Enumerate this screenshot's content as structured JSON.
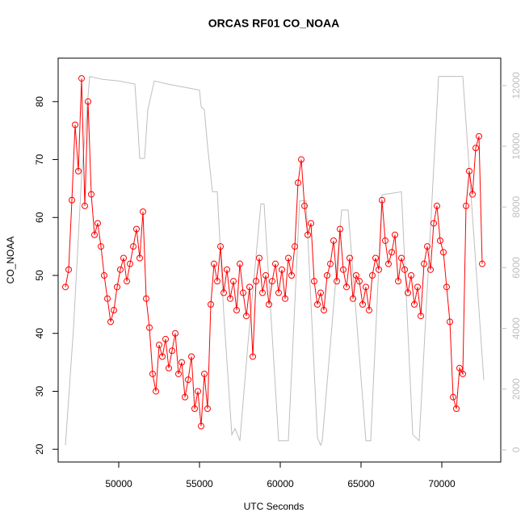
{
  "chart_data": {
    "type": "scatter",
    "title": "ORCAS RF01 CO_NOAA",
    "x_label": "UTC Seconds",
    "y_label": "CO_NOAA",
    "xlim": [
      46250,
      73650
    ],
    "xticks": [
      50000,
      55000,
      60000,
      65000,
      70000
    ],
    "ylim": [
      17.8,
      87.5
    ],
    "yticks": [
      20,
      30,
      40,
      50,
      60,
      70,
      80
    ],
    "y2lim": [
      -400,
      12900
    ],
    "y2ticks": [
      0,
      2000,
      4000,
      6000,
      8000,
      10000,
      12000
    ],
    "series": [
      {
        "color": "#ff0000",
        "marker": "circle",
        "line": true,
        "x": [
          46700,
          46900,
          47100,
          47300,
          47500,
          47700,
          47900,
          48100,
          48300,
          48500,
          48700,
          48900,
          49100,
          49300,
          49500,
          49700,
          49900,
          50100,
          50300,
          50500,
          50700,
          50900,
          51100,
          51300,
          51500,
          51700,
          51900,
          52100,
          52300,
          52500,
          52700,
          52900,
          53100,
          53300,
          53500,
          53700,
          53900,
          54100,
          54300,
          54500,
          54700,
          54900,
          55100,
          55300,
          55500,
          55700,
          55900,
          56100,
          56300,
          56500,
          56700,
          56900,
          57100,
          57300,
          57500,
          57700,
          57900,
          58100,
          58300,
          58500,
          58700,
          58900,
          59100,
          59300,
          59500,
          59700,
          59900,
          60100,
          60300,
          60500,
          60700,
          60900,
          61100,
          61300,
          61500,
          61700,
          61900,
          62100,
          62300,
          62500,
          62700,
          62900,
          63100,
          63300,
          63500,
          63700,
          63900,
          64100,
          64300,
          64500,
          64700,
          64900,
          65100,
          65300,
          65500,
          65700,
          65900,
          66100,
          66300,
          66500,
          66700,
          66900,
          67100,
          67300,
          67500,
          67700,
          67900,
          68100,
          68300,
          68500,
          68700,
          68900,
          69100,
          69300,
          69500,
          69700,
          69900,
          70100,
          70300,
          70500,
          70700,
          70900,
          71100,
          71300,
          71500,
          71700,
          71900,
          72100,
          72300,
          72500
        ],
        "values": [
          48,
          51,
          63,
          76,
          68,
          84,
          62,
          80,
          64,
          57,
          59,
          55,
          50,
          46,
          42,
          44,
          48,
          51,
          53,
          49,
          52,
          55,
          58,
          53,
          61,
          46,
          41,
          33,
          30,
          38,
          36,
          39,
          34,
          37,
          40,
          33,
          35,
          29,
          32,
          36,
          27,
          30,
          24,
          33,
          27,
          45,
          52,
          49,
          55,
          47,
          51,
          46,
          49,
          44,
          52,
          47,
          43,
          48,
          36,
          49,
          53,
          47,
          50,
          45,
          49,
          52,
          47,
          51,
          46,
          53,
          50,
          55,
          66,
          70,
          62,
          57,
          59,
          49,
          45,
          47,
          44,
          50,
          52,
          56,
          49,
          58,
          51,
          48,
          53,
          46,
          50,
          49,
          45,
          48,
          44,
          50,
          53,
          51,
          63,
          56,
          52,
          54,
          57,
          49,
          53,
          51,
          47,
          50,
          45,
          48,
          43,
          52,
          55,
          51,
          59,
          62,
          56,
          54,
          48,
          42,
          29,
          27,
          34,
          33,
          62,
          68,
          64,
          72,
          74,
          52
        ]
      },
      {
        "color": "#bebebe",
        "axis": "y2",
        "marker": "none",
        "line": true,
        "x": [
          46700,
          47200,
          47700,
          48200,
          49000,
          50000,
          51000,
          51200,
          51300,
          51600,
          51800,
          52200,
          53000,
          54000,
          55000,
          55100,
          55300,
          55500,
          55800,
          56100,
          56500,
          57000,
          57200,
          57500,
          58000,
          58800,
          59000,
          59900,
          60500,
          61200,
          61600,
          62300,
          62500,
          62600,
          63800,
          64200,
          65300,
          65600,
          66300,
          67500,
          68200,
          68600,
          69800,
          70500,
          71300,
          72600
        ],
        "values": [
          150,
          4000,
          9000,
          12300,
          12200,
          12150,
          12050,
          10500,
          9600,
          9600,
          11200,
          12150,
          12050,
          11950,
          11850,
          11300,
          11200,
          10000,
          8500,
          8500,
          4500,
          500,
          700,
          300,
          3500,
          8100,
          8100,
          300,
          300,
          8200,
          8200,
          400,
          150,
          300,
          7900,
          7900,
          300,
          300,
          8400,
          8500,
          500,
          300,
          12300,
          12300,
          12300,
          2300
        ]
      }
    ]
  }
}
